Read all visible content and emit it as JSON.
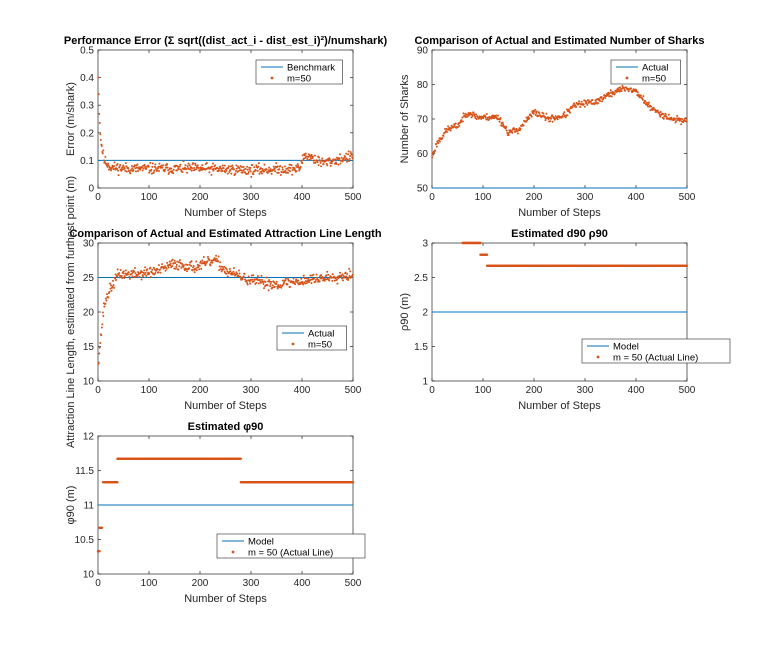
{
  "figure": {
    "background": "#ffffff"
  },
  "colors": {
    "series_line": "#0072BD",
    "series_points": "#D95319",
    "axis": "#262626"
  },
  "chart_data": [
    {
      "id": "perf-error",
      "type": "scatter",
      "title": "Performance Error (Σ sqrt((dist_act_i - dist_est_i)²)/numshark)",
      "xlabel": "Number of Steps",
      "ylabel": "Error (m/shark)",
      "xlim": [
        0,
        500
      ],
      "ylim": [
        0,
        0.5
      ],
      "xticks": [
        0,
        100,
        200,
        300,
        400,
        500
      ],
      "yticks": [
        0,
        0.1,
        0.2,
        0.3,
        0.4,
        0.5
      ],
      "legend_position": "top-right",
      "series": [
        {
          "name": "Benchmark",
          "kind": "line",
          "color": "#0072BD",
          "x": [
            0,
            500
          ],
          "y": [
            0.1,
            0.1
          ]
        },
        {
          "name": "m=50",
          "kind": "dots",
          "color": "#D95319",
          "n": 500,
          "seed": 11,
          "trend": [
            [
              0,
              0.45
            ],
            [
              2,
              0.3
            ],
            [
              5,
              0.18
            ],
            [
              12,
              0.1
            ],
            [
              25,
              0.075
            ],
            [
              60,
              0.07
            ],
            [
              100,
              0.07
            ],
            [
              200,
              0.07
            ],
            [
              300,
              0.065
            ],
            [
              395,
              0.07
            ],
            [
              405,
              0.12
            ],
            [
              420,
              0.11
            ],
            [
              440,
              0.09
            ],
            [
              500,
              0.115
            ]
          ],
          "noise": 0.018
        }
      ]
    },
    {
      "id": "num-sharks",
      "type": "scatter",
      "title": "Comparison of Actual and Estimated Number of Sharks",
      "xlabel": "Number of Steps",
      "ylabel": "Number of Sharks",
      "xlim": [
        0,
        500
      ],
      "ylim": [
        50,
        90
      ],
      "xticks": [
        0,
        100,
        200,
        300,
        400,
        500
      ],
      "yticks": [
        50,
        60,
        70,
        80,
        90
      ],
      "legend_position": "top-right",
      "series": [
        {
          "name": "Actual",
          "kind": "line",
          "color": "#0072BD",
          "x": [
            0,
            500
          ],
          "y": [
            50,
            50
          ]
        },
        {
          "name": "m=50",
          "kind": "dots",
          "color": "#D95319",
          "n": 500,
          "seed": 23,
          "trend": [
            [
              0,
              59
            ],
            [
              10,
              63
            ],
            [
              30,
              67
            ],
            [
              50,
              68
            ],
            [
              70,
              72
            ],
            [
              90,
              70.5
            ],
            [
              130,
              70.5
            ],
            [
              150,
              66
            ],
            [
              170,
              67
            ],
            [
              200,
              72
            ],
            [
              230,
              70
            ],
            [
              260,
              71
            ],
            [
              280,
              74
            ],
            [
              320,
              75
            ],
            [
              360,
              78
            ],
            [
              380,
              79
            ],
            [
              400,
              78
            ],
            [
              430,
              73
            ],
            [
              470,
              70
            ],
            [
              500,
              69.5
            ]
          ],
          "noise": 0.9
        }
      ]
    },
    {
      "id": "line-length",
      "type": "scatter",
      "title": "Comparison of Actual and Estimated Attraction Line Length",
      "xlabel": "Number of Steps",
      "ylabel": "Attraction Line Length, estimated from furthest point (m)",
      "xlim": [
        0,
        500
      ],
      "ylim": [
        10,
        30
      ],
      "xticks": [
        0,
        100,
        200,
        300,
        400,
        500
      ],
      "yticks": [
        10,
        15,
        20,
        25,
        30
      ],
      "legend_position": "bottom-right",
      "series": [
        {
          "name": "Actual",
          "kind": "line",
          "color": "#0072BD",
          "x": [
            0,
            500
          ],
          "y": [
            25,
            25
          ]
        },
        {
          "name": "m=50",
          "kind": "dots",
          "color": "#D95319",
          "n": 500,
          "seed": 37,
          "trend": [
            [
              0,
              12.5
            ],
            [
              5,
              16
            ],
            [
              12,
              21
            ],
            [
              22,
              23
            ],
            [
              40,
              25.5
            ],
            [
              80,
              25.5
            ],
            [
              120,
              26
            ],
            [
              150,
              27
            ],
            [
              190,
              26.5
            ],
            [
              230,
              27.5
            ],
            [
              250,
              26
            ],
            [
              300,
              24.5
            ],
            [
              350,
              24
            ],
            [
              400,
              24.5
            ],
            [
              450,
              25
            ],
            [
              500,
              25.5
            ]
          ],
          "noise": 0.75
        }
      ]
    },
    {
      "id": "rho90",
      "type": "line",
      "title": "Estimated d90 ρ90",
      "xlabel": "Number of Steps",
      "ylabel": "ρ90 (m)",
      "xlim": [
        0,
        500
      ],
      "ylim": [
        1,
        3
      ],
      "xticks": [
        0,
        100,
        200,
        300,
        400,
        500
      ],
      "yticks": [
        1,
        1.5,
        2,
        2.5,
        3
      ],
      "legend_position": "bottom-right",
      "series": [
        {
          "name": "Model",
          "kind": "line",
          "color": "#0072BD",
          "x": [
            0,
            500
          ],
          "y": [
            2,
            2
          ]
        },
        {
          "name": "m = 50 (Actual Line)",
          "kind": "steps",
          "color": "#D95319",
          "segments": [
            [
              60,
              95,
              3.0
            ],
            [
              95,
              108,
              2.83
            ],
            [
              108,
              500,
              2.67
            ]
          ]
        }
      ]
    },
    {
      "id": "phi90",
      "type": "line",
      "title": "Estimated φ90",
      "xlabel": "Number of Steps",
      "ylabel": "φ90 (m)",
      "xlim": [
        0,
        500
      ],
      "ylim": [
        10,
        12
      ],
      "xticks": [
        0,
        100,
        200,
        300,
        400,
        500
      ],
      "yticks": [
        10,
        10.5,
        11,
        11.5,
        12
      ],
      "legend_position": "bottom-right",
      "series": [
        {
          "name": "Model",
          "kind": "line",
          "color": "#0072BD",
          "x": [
            0,
            500
          ],
          "y": [
            11,
            11
          ]
        },
        {
          "name": "m = 50 (Actual Line)",
          "kind": "steps",
          "color": "#D95319",
          "segments": [
            [
              0,
              3,
              10.33
            ],
            [
              3,
              8,
              10.67
            ],
            [
              10,
              38,
              11.33
            ],
            [
              38,
              280,
              11.67
            ],
            [
              280,
              500,
              11.33
            ]
          ]
        }
      ]
    }
  ]
}
